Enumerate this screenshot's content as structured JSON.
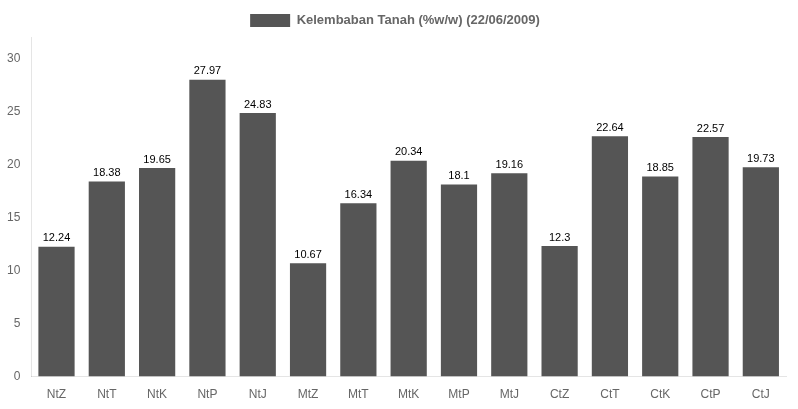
{
  "chart_data": {
    "type": "bar",
    "categories": [
      "NtZ",
      "NtT",
      "NtK",
      "NtP",
      "NtJ",
      "MtZ",
      "MtT",
      "MtK",
      "MtP",
      "MtJ",
      "CtZ",
      "CtT",
      "CtK",
      "CtP",
      "CtJ"
    ],
    "series": [
      {
        "name": "Kelembaban Tanah (%w/w) (22/06/2009)",
        "color": "#555555",
        "values": [
          12.24,
          18.38,
          19.65,
          27.97,
          24.83,
          10.67,
          16.34,
          20.34,
          18.1,
          19.16,
          12.3,
          22.64,
          18.85,
          22.57,
          19.73
        ]
      }
    ],
    "ylim": [
      0,
      32
    ],
    "yticks": [
      0,
      5,
      10,
      15,
      20,
      25,
      30
    ],
    "grid": false,
    "legend": "top",
    "data_labels": true
  }
}
